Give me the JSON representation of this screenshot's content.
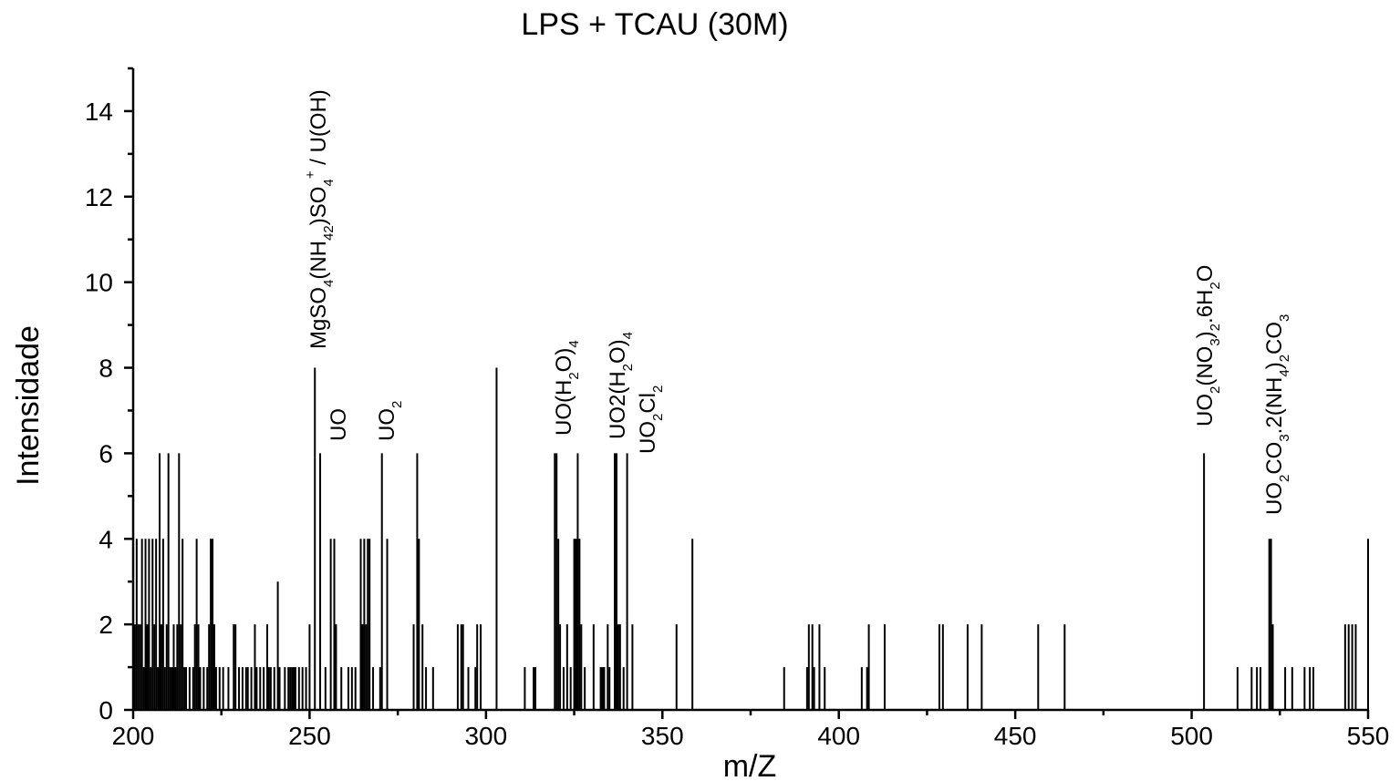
{
  "chart_data": {
    "type": "bar",
    "title": "LPS + TCAU (30M)",
    "xlabel": "m/Z",
    "ylabel": "Intensidade",
    "xlim": [
      200,
      550
    ],
    "ylim": [
      0,
      15
    ],
    "xticks": [
      200,
      250,
      300,
      350,
      400,
      450,
      500,
      550
    ],
    "yticks": [
      0,
      2,
      4,
      6,
      8,
      10,
      12,
      14
    ],
    "grid": false,
    "points": [
      [
        200.5,
        2
      ],
      [
        201,
        4
      ],
      [
        201.5,
        2
      ],
      [
        202,
        2
      ],
      [
        202.5,
        4
      ],
      [
        203,
        1
      ],
      [
        203.5,
        4
      ],
      [
        204,
        2
      ],
      [
        204.5,
        4
      ],
      [
        205,
        1
      ],
      [
        205.5,
        4
      ],
      [
        206,
        2
      ],
      [
        206.5,
        4
      ],
      [
        207,
        1
      ],
      [
        207.5,
        6
      ],
      [
        208,
        2
      ],
      [
        208.5,
        4
      ],
      [
        209,
        1
      ],
      [
        209.5,
        2
      ],
      [
        210,
        6
      ],
      [
        210.5,
        1
      ],
      [
        211,
        1
      ],
      [
        211.5,
        2
      ],
      [
        212,
        1
      ],
      [
        212.5,
        2
      ],
      [
        213,
        6
      ],
      [
        213.5,
        2
      ],
      [
        214,
        4
      ],
      [
        214.5,
        1
      ],
      [
        215,
        1
      ],
      [
        216,
        1
      ],
      [
        217,
        1
      ],
      [
        217.5,
        2
      ],
      [
        218,
        4
      ],
      [
        218.5,
        2
      ],
      [
        219,
        1
      ],
      [
        220,
        1
      ],
      [
        221,
        1
      ],
      [
        221.5,
        2
      ],
      [
        222,
        4
      ],
      [
        222.5,
        4
      ],
      [
        223,
        2
      ],
      [
        223.5,
        1
      ],
      [
        224.5,
        1
      ],
      [
        225.5,
        1
      ],
      [
        227,
        1
      ],
      [
        228.5,
        2
      ],
      [
        229,
        2
      ],
      [
        230,
        1
      ],
      [
        231,
        1
      ],
      [
        232,
        1
      ],
      [
        232.5,
        1
      ],
      [
        233.5,
        1
      ],
      [
        234.5,
        2
      ],
      [
        235,
        1
      ],
      [
        236,
        1
      ],
      [
        237,
        1
      ],
      [
        238,
        2
      ],
      [
        238.5,
        1
      ],
      [
        239,
        1
      ],
      [
        240,
        1
      ],
      [
        241,
        3
      ],
      [
        241.5,
        1
      ],
      [
        243,
        1
      ],
      [
        244,
        1
      ],
      [
        244.5,
        1
      ],
      [
        245,
        1
      ],
      [
        245.5,
        1
      ],
      [
        246,
        1
      ],
      [
        247,
        1
      ],
      [
        248,
        1
      ],
      [
        249,
        1
      ],
      [
        250,
        2
      ],
      [
        251.5,
        8
      ],
      [
        253,
        6
      ],
      [
        254.5,
        1
      ],
      [
        256,
        4
      ],
      [
        257,
        4
      ],
      [
        257.5,
        2
      ],
      [
        259,
        1
      ],
      [
        261,
        1
      ],
      [
        262,
        1
      ],
      [
        263,
        1
      ],
      [
        264.5,
        4
      ],
      [
        265,
        2
      ],
      [
        265.5,
        4
      ],
      [
        266,
        2
      ],
      [
        266.5,
        4
      ],
      [
        267,
        4
      ],
      [
        268,
        1
      ],
      [
        270,
        1
      ],
      [
        270.5,
        6
      ],
      [
        272,
        4
      ],
      [
        279.5,
        2
      ],
      [
        280.5,
        6
      ],
      [
        281,
        4
      ],
      [
        282,
        2
      ],
      [
        283,
        1
      ],
      [
        285,
        1
      ],
      [
        292,
        2
      ],
      [
        293,
        2
      ],
      [
        293.5,
        2
      ],
      [
        295,
        1
      ],
      [
        297,
        1
      ],
      [
        297.5,
        2
      ],
      [
        298.5,
        2
      ],
      [
        303,
        8
      ],
      [
        311,
        1
      ],
      [
        313.5,
        1
      ],
      [
        314,
        1
      ],
      [
        319.5,
        6
      ],
      [
        320,
        6
      ],
      [
        320.5,
        4
      ],
      [
        321,
        2
      ],
      [
        322,
        1
      ],
      [
        323,
        2
      ],
      [
        324,
        1
      ],
      [
        325,
        4
      ],
      [
        325.5,
        4
      ],
      [
        326,
        6
      ],
      [
        326.5,
        4
      ],
      [
        327,
        2
      ],
      [
        328,
        1
      ],
      [
        330.5,
        2
      ],
      [
        332.5,
        1
      ],
      [
        333,
        1
      ],
      [
        333.5,
        1
      ],
      [
        334.5,
        2
      ],
      [
        335,
        1
      ],
      [
        336.5,
        6
      ],
      [
        337,
        6
      ],
      [
        337.5,
        2
      ],
      [
        338,
        2
      ],
      [
        339,
        1
      ],
      [
        340,
        6
      ],
      [
        341.5,
        2
      ],
      [
        354,
        2
      ],
      [
        358.5,
        4
      ],
      [
        384.5,
        1
      ],
      [
        391,
        1
      ],
      [
        391.5,
        2
      ],
      [
        392.5,
        2
      ],
      [
        393,
        1
      ],
      [
        394.5,
        2
      ],
      [
        396,
        1
      ],
      [
        406.5,
        1
      ],
      [
        408,
        1
      ],
      [
        408.5,
        2
      ],
      [
        413,
        2
      ],
      [
        428.5,
        2
      ],
      [
        429.5,
        2
      ],
      [
        436.5,
        2
      ],
      [
        440.5,
        2
      ],
      [
        456.5,
        2
      ],
      [
        464,
        2
      ],
      [
        503.5,
        6
      ],
      [
        513,
        1
      ],
      [
        517,
        1
      ],
      [
        518.5,
        1
      ],
      [
        519.5,
        1
      ],
      [
        522,
        4
      ],
      [
        522.5,
        4
      ],
      [
        523,
        2
      ],
      [
        526.5,
        1
      ],
      [
        528.5,
        1
      ],
      [
        532,
        1
      ],
      [
        533.5,
        1
      ],
      [
        534.5,
        1
      ],
      [
        543.5,
        2
      ],
      [
        544.5,
        2
      ],
      [
        545.5,
        2
      ],
      [
        546.5,
        2
      ],
      [
        550,
        4
      ]
    ],
    "annotations": [
      {
        "base": "MgSO",
        "sub": "4",
        "rest": "(NH",
        "sub2": "4",
        "sub3": "2",
        "rest2": ")SO",
        "sub4": "4",
        "sup": "+",
        "tail": " / U(OH)"
      },
      {
        "text": "UO"
      },
      {
        "text": "UO",
        "sub": "2"
      },
      {
        "text": "UO(H",
        "sub": "2",
        "tail": "O)",
        "sub2": "4"
      },
      {
        "text": "UO2(H",
        "sub": "2",
        "tail": "O)",
        "sub2": "4"
      },
      {
        "text": "UO",
        "sub": "2",
        "tail": "Cl",
        "sub2": "2"
      },
      {
        "text": "UO",
        "sub": "2",
        "tail": "(NO",
        "sub2": "3",
        "tail2": ")",
        "sub3": "2",
        "tail3": ".6H",
        "sub4": "2",
        "tail4": "O"
      },
      {
        "text": "UO",
        "sub": "2",
        "tail": "CO",
        "sub2": "3",
        "tail2": ".2(NH",
        "sub3": "4",
        "tail3": ")",
        "sub4": "2",
        "tail4": "CO",
        "sub5": "3"
      }
    ]
  }
}
